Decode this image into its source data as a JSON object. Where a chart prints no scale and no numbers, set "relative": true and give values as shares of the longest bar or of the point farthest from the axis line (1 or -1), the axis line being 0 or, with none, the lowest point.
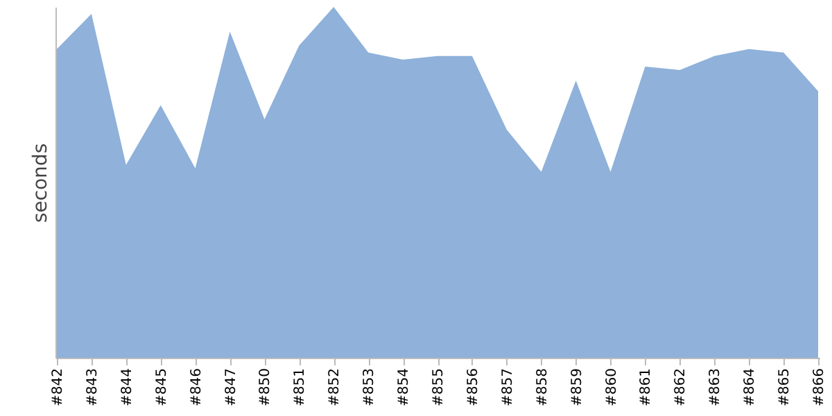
{
  "chart_data": {
    "type": "area",
    "ylabel": "seconds",
    "relative": true,
    "categories": [
      "#842",
      "#843",
      "#844",
      "#845",
      "#846",
      "#847",
      "#850",
      "#851",
      "#852",
      "#853",
      "#854",
      "#855",
      "#856",
      "#857",
      "#858",
      "#859",
      "#860",
      "#861",
      "#862",
      "#863",
      "#864",
      "#865",
      "#866"
    ],
    "series": [
      {
        "color": "#8fb1da",
        "values": [
          0.88,
          0.98,
          0.55,
          0.72,
          0.54,
          0.93,
          0.68,
          0.89,
          1,
          0.87,
          0.85,
          0.86,
          0.86,
          0.65,
          0.53,
          0.79,
          0.53,
          0.83,
          0.82,
          0.86,
          0.88,
          0.87,
          0.76
        ]
      }
    ],
    "grid": false
  }
}
